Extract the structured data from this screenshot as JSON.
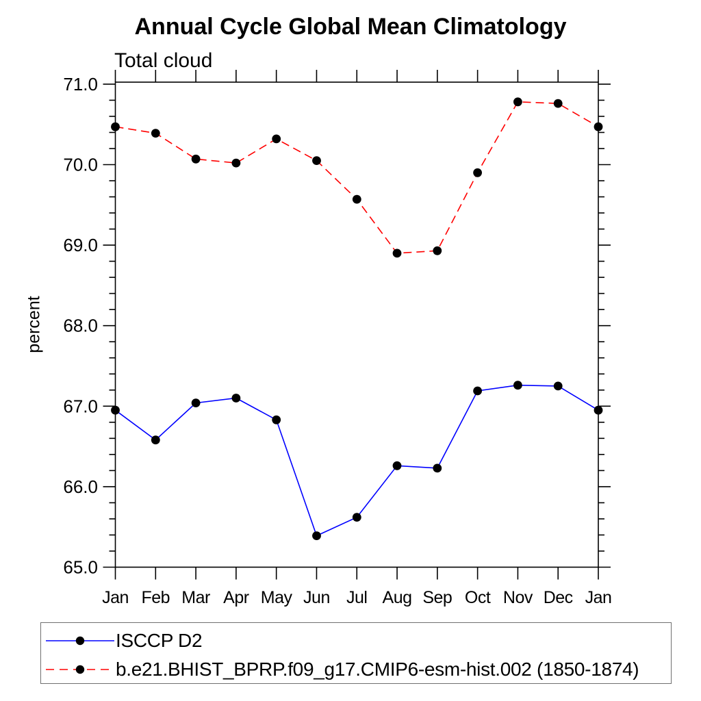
{
  "chart_data": {
    "type": "line",
    "title": "Annual Cycle Global Mean Climatology",
    "subtitle": "Total cloud",
    "xlabel": "",
    "ylabel": "percent",
    "categories": [
      "Jan",
      "Feb",
      "Mar",
      "Apr",
      "May",
      "Jun",
      "Jul",
      "Aug",
      "Sep",
      "Oct",
      "Nov",
      "Dec",
      "Jan"
    ],
    "y_tick_labels": [
      "65.0",
      "66.0",
      "67.0",
      "68.0",
      "69.0",
      "70.0",
      "71.0"
    ],
    "y_tick_values": [
      65.0,
      66.0,
      67.0,
      68.0,
      69.0,
      70.0,
      71.0
    ],
    "y_minor_tick_step": 0.2,
    "ylim": [
      65.0,
      71.03
    ],
    "grid": false,
    "legend_position": "bottom-left boxed",
    "axis_color": "#000000",
    "series": [
      {
        "name": "ISCCP D2",
        "color": "#0000ff",
        "line_style": "solid",
        "marker": "filled-circle",
        "marker_color": "#000000",
        "values": [
          66.95,
          66.58,
          67.04,
          67.1,
          66.83,
          65.39,
          65.62,
          66.26,
          66.23,
          67.19,
          67.26,
          67.25,
          66.95
        ]
      },
      {
        "name": "b.e21.BHIST_BPRP.f09_g17.CMIP6-esm-hist.002 (1850-1874)",
        "color": "#ff0000",
        "line_style": "dashed",
        "marker": "filled-circle",
        "marker_color": "#000000",
        "values": [
          70.47,
          70.39,
          70.07,
          70.02,
          70.32,
          70.05,
          69.57,
          68.9,
          68.93,
          69.9,
          70.78,
          70.76,
          70.47
        ]
      }
    ]
  }
}
